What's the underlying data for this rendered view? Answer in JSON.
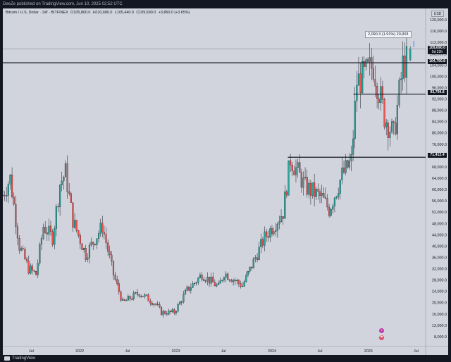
{
  "header": {
    "text": "DeeZe published on TradingView.com, Jun 10, 2025 02:52 UTC"
  },
  "legend": {
    "symbol": "Bitcoin / U.S. Dollar · 1W · BITFINEX",
    "open": "O105,800.0",
    "high": "H110,680.0",
    "low": "L105,440.0",
    "close": "C109,690.0",
    "change": "+3,860.0 (+3.65%)"
  },
  "currency_button": "USD",
  "measure_label": "2,090.3 (1.91%) 20,903",
  "price_tags": {
    "current": "109,690.0",
    "countdown": "5d 22h",
    "level_1": "104,790.8",
    "level_2": "93,709.8",
    "level_3": "71,412.4"
  },
  "footer": {
    "brand": "TradingView"
  },
  "colors": {
    "up": "#26a69a",
    "down": "#ef5350",
    "background": "#d1d4dc",
    "text": "#131722"
  },
  "chart_data": {
    "type": "candlestick",
    "title": "Bitcoin / U.S. Dollar · 1W · BITFINEX",
    "ylim": [
      5000,
      124000
    ],
    "y_ticks": [
      8000,
      12000,
      16000,
      20000,
      24000,
      28000,
      32000,
      36000,
      40000,
      44000,
      48000,
      52000,
      56000,
      60000,
      64000,
      68000,
      72000,
      76000,
      80000,
      84000,
      88000,
      92000,
      96000,
      100000,
      104000,
      108000,
      112000,
      116000,
      120000
    ],
    "y_tick_labels": [
      "8,000.0",
      "12,000.0",
      "16,000.0",
      "20,000.0",
      "24,000.0",
      "28,000.0",
      "32,000.0",
      "36,000.0",
      "40,000.0",
      "44,000.0",
      "48,000.0",
      "52,000.0",
      "56,000.0",
      "60,000.0",
      "64,000.0",
      "68,000.0",
      "72,000.0",
      "76,000.0",
      "80,000.0",
      "84,000.0",
      "88,000.0",
      "92,000.0",
      "96,000.0",
      "100,000.0",
      "104,000.0",
      "108,000.0",
      "112,000.0",
      "116,000.0",
      "120,000.0"
    ],
    "x_labels": [
      "Jul",
      "2022",
      "Jul",
      "2023",
      "Jul",
      "2024",
      "Jul",
      "2025",
      "Jul"
    ],
    "x_label_dates": [
      "2021-07-01",
      "2022-01-01",
      "2022-07-01",
      "2023-01-01",
      "2023-07-01",
      "2024-01-01",
      "2024-07-01",
      "2025-01-01",
      "2025-07-01"
    ],
    "x_range": [
      "2021-03-15",
      "2025-08-01"
    ],
    "horizontal_levels": [
      {
        "price": 104790.8,
        "from": "2021-03-15"
      },
      {
        "price": 93709.8,
        "from": "2024-11-05"
      },
      {
        "price": 71412.4,
        "from": "2024-03-01"
      }
    ],
    "current_price": 109690.0,
    "last_candle": {
      "date": "2025-06-09",
      "open": 105800.0,
      "high": 110680.0,
      "low": 105440.0,
      "close": 109690.0
    },
    "anchors": [
      {
        "date": "2021-03-15",
        "close": 58000
      },
      {
        "date": "2021-04-12",
        "close": 64000
      },
      {
        "date": "2021-05-17",
        "close": 40000
      },
      {
        "date": "2021-06-21",
        "close": 32000
      },
      {
        "date": "2021-07-19",
        "close": 30000
      },
      {
        "date": "2021-08-16",
        "close": 47000
      },
      {
        "date": "2021-09-20",
        "close": 43000
      },
      {
        "date": "2021-10-18",
        "close": 62000
      },
      {
        "date": "2021-11-08",
        "close": 66000
      },
      {
        "date": "2021-12-06",
        "close": 49000
      },
      {
        "date": "2022-01-24",
        "close": 37000
      },
      {
        "date": "2022-03-28",
        "close": 47000
      },
      {
        "date": "2022-05-09",
        "close": 30000
      },
      {
        "date": "2022-06-13",
        "close": 20000
      },
      {
        "date": "2022-08-15",
        "close": 23500
      },
      {
        "date": "2022-10-17",
        "close": 19500
      },
      {
        "date": "2022-11-07",
        "close": 16500
      },
      {
        "date": "2022-12-26",
        "close": 16600
      },
      {
        "date": "2023-02-13",
        "close": 24500
      },
      {
        "date": "2023-03-13",
        "close": 27000
      },
      {
        "date": "2023-04-10",
        "close": 30000
      },
      {
        "date": "2023-06-12",
        "close": 25500
      },
      {
        "date": "2023-07-03",
        "close": 30500
      },
      {
        "date": "2023-09-11",
        "close": 26000
      },
      {
        "date": "2023-10-23",
        "close": 34500
      },
      {
        "date": "2023-12-04",
        "close": 43000
      },
      {
        "date": "2024-02-12",
        "close": 52000
      },
      {
        "date": "2024-03-11",
        "close": 71000
      },
      {
        "date": "2024-05-06",
        "close": 61000
      },
      {
        "date": "2024-07-08",
        "close": 57000
      },
      {
        "date": "2024-08-05",
        "close": 53000
      },
      {
        "date": "2024-09-23",
        "close": 65000
      },
      {
        "date": "2024-10-28",
        "close": 70000
      },
      {
        "date": "2024-11-18",
        "close": 98000
      },
      {
        "date": "2024-12-16",
        "close": 100000
      },
      {
        "date": "2025-01-20",
        "close": 104000
      },
      {
        "date": "2025-03-03",
        "close": 86000
      },
      {
        "date": "2025-04-07",
        "close": 79000
      },
      {
        "date": "2025-05-12",
        "close": 104000
      },
      {
        "date": "2025-06-02",
        "close": 105800
      }
    ]
  }
}
